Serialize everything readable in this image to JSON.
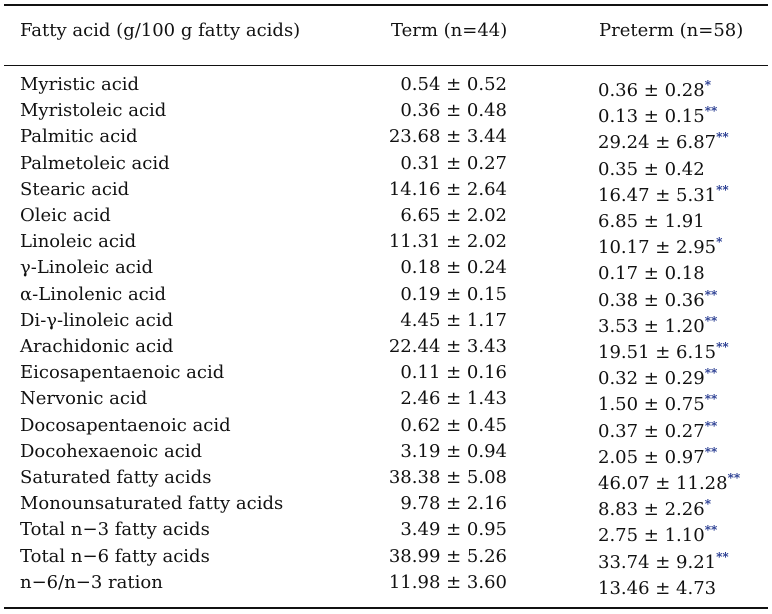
{
  "table": {
    "headers": {
      "fatty_acid": "Fatty acid (g/100 g fatty acids)",
      "term": "Term (n=44)",
      "preterm": "Preterm (n=58)"
    },
    "rows": [
      {
        "name": "Myristic acid",
        "term": "0.54 ± 0.52",
        "preterm": "0.36 ± 0.28",
        "sig": "*"
      },
      {
        "name": "Myristoleic acid",
        "term": "0.36 ± 0.48",
        "preterm": "0.13 ± 0.15",
        "sig": "**"
      },
      {
        "name": "Palmitic acid",
        "term": "23.68 ± 3.44",
        "preterm": "29.24 ± 6.87",
        "sig": "**"
      },
      {
        "name": "Palmetoleic acid",
        "term": "0.31 ± 0.27",
        "preterm": "0.35 ± 0.42",
        "sig": ""
      },
      {
        "name": "Stearic acid",
        "term": "14.16 ± 2.64",
        "preterm": "16.47 ± 5.31",
        "sig": "**"
      },
      {
        "name": "Oleic acid",
        "term": "6.65 ± 2.02",
        "preterm": "6.85 ± 1.91",
        "sig": ""
      },
      {
        "name": "Linoleic acid",
        "term": "11.31 ± 2.02",
        "preterm": "10.17 ± 2.95",
        "sig": "*"
      },
      {
        "name": "γ-Linoleic acid",
        "term": "0.18 ±  0.24",
        "preterm": "0.17  ± 0.18",
        "sig": ""
      },
      {
        "name": "α-Linolenic acid",
        "term": "0.19 ± 0.15",
        "preterm": "0.38 ± 0.36",
        "sig": "**"
      },
      {
        "name": "Di-γ-linoleic acid",
        "term": "4.45 ± 1.17",
        "preterm": "3.53 ± 1.20",
        "sig": "**"
      },
      {
        "name": "Arachidonic acid",
        "term": "22.44 ± 3.43",
        "preterm": "19.51 ± 6.15",
        "sig": "**"
      },
      {
        "name": "Eicosapentaenoic acid",
        "term": "0.11 ± 0.16",
        "preterm": "0.32 ± 0.29",
        "sig": "**"
      },
      {
        "name": "Nervonic acid",
        "term": "2.46 ± 1.43",
        "preterm": "1.50 ± 0.75",
        "sig": "**"
      },
      {
        "name": "Docosapentaenoic acid",
        "term": "0.62 ± 0.45",
        "preterm": "0.37 ± 0.27",
        "sig": "**"
      },
      {
        "name": "Docohexaenoic acid",
        "term": "3.19 ± 0.94",
        "preterm": "2.05 ± 0.97",
        "sig": "**"
      },
      {
        "name": "Saturated fatty acids",
        "term": "38.38 ± 5.08",
        "preterm": "46.07 ± 11.28",
        "sig": "**"
      },
      {
        "name": "Monounsaturated fatty acids",
        "term": "9.78 ± 2.16",
        "preterm": "8.83 ± 2.26",
        "sig": "*"
      },
      {
        "name": "Total n−3 fatty acids",
        "term": "3.49 ± 0.95",
        "preterm": "2.75 ± 1.10",
        "sig": "**"
      },
      {
        "name": "Total n−6 fatty acids",
        "term": "38.99 ± 5.26",
        "preterm": "33.74 ± 9.21",
        "sig": "**"
      },
      {
        "name": "n−6/n−3 ration",
        "term": "11.98 ± 3.60",
        "preterm": "13.46 ± 4.73",
        "sig": ""
      }
    ]
  }
}
